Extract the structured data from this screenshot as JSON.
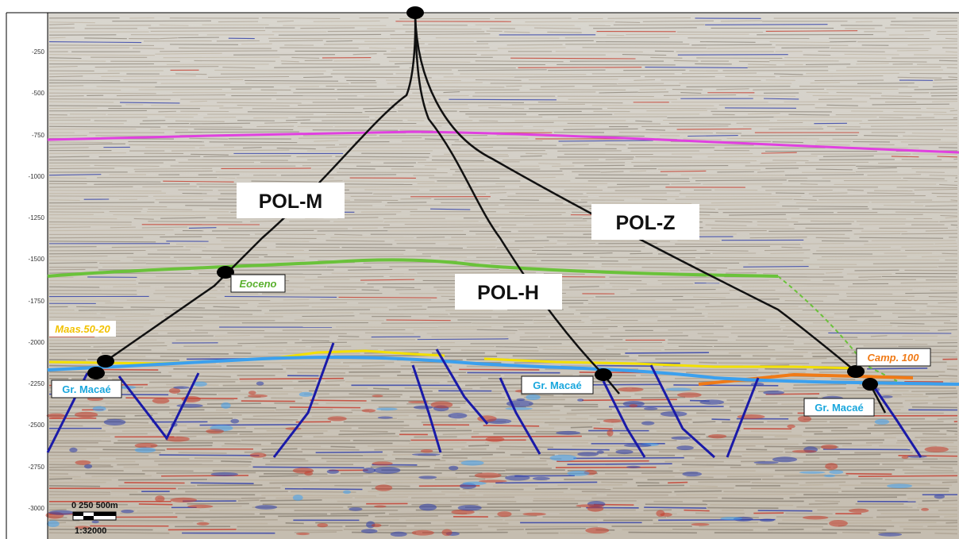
{
  "axis": {
    "ticks": [
      "-250",
      "-500",
      "-750",
      "-1000",
      "-1250",
      "-1500",
      "-1750",
      "-2000",
      "-2250",
      "-2500",
      "-2750",
      "-3000"
    ]
  },
  "wells": {
    "pol_m": "POL-M",
    "pol_h": "POL-H",
    "pol_z": "POL-Z"
  },
  "horizons": {
    "eoceno": "Eoceno",
    "maas": "Maas.50-20",
    "camp": "Camp. 100",
    "macae": "Gr. Macaé"
  },
  "colors": {
    "eoceno": "#6ac23a",
    "maas": "#f2c200",
    "camp": "#f07a16",
    "macae": "#1aa7dd",
    "magenta": "#e040e0",
    "fault": "#1a1aa8"
  },
  "scale_bar": {
    "label": "0  250 500m",
    "ratio": "1:32000"
  }
}
